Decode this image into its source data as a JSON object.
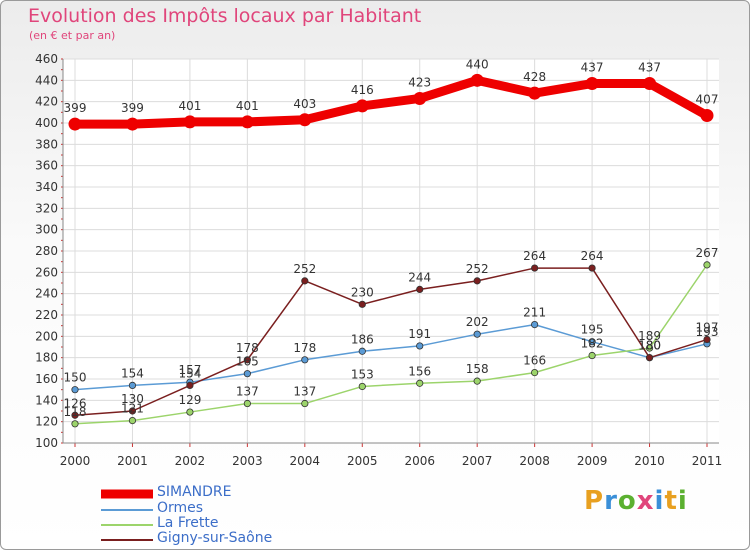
{
  "header": {
    "title": "Evolution des Impôts locaux par Habitant",
    "subtitle": "(en € et par an)"
  },
  "brand": {
    "text": "Proxiti",
    "colors": [
      "#e8a020",
      "#3a8fd8",
      "#5bb030",
      "#e0457b",
      "#3a8fd8",
      "#e8a020",
      "#5bb030"
    ]
  },
  "chart_data": {
    "type": "line",
    "categories": [
      "2000",
      "2001",
      "2002",
      "2003",
      "2004",
      "2005",
      "2006",
      "2007",
      "2008",
      "2009",
      "2010",
      "2011"
    ],
    "ylim": [
      100,
      460
    ],
    "yticks": [
      100,
      120,
      140,
      160,
      180,
      200,
      220,
      240,
      260,
      280,
      300,
      320,
      340,
      360,
      380,
      400,
      420,
      440,
      460
    ],
    "grid": true,
    "legend_position": "bottom-left",
    "series": [
      {
        "name": "SIMANDRE",
        "color": "#ee0000",
        "values": [
          399,
          399,
          401,
          401,
          403,
          416,
          423,
          440,
          428,
          437,
          437,
          407
        ],
        "labels": [
          "399",
          "399",
          "401",
          "401",
          "403",
          "416",
          "423",
          "440",
          "428",
          "437",
          "437",
          "407"
        ]
      },
      {
        "name": "Ormes",
        "color": "#5b9bd5",
        "values": [
          150,
          154,
          157,
          165,
          178,
          186,
          191,
          202,
          211,
          195,
          180,
          193
        ],
        "labels": [
          "150",
          "154",
          "157",
          "165",
          "178",
          "186",
          "191",
          "202",
          "211",
          "195",
          "180",
          "193"
        ]
      },
      {
        "name": "La Frette",
        "color": "#9cd46b",
        "values": [
          118,
          121,
          129,
          137,
          137,
          153,
          156,
          158,
          166,
          182,
          189,
          267
        ],
        "labels": [
          "118",
          "121",
          "129",
          "137",
          "137",
          "153",
          "156",
          "158",
          "166",
          "182",
          "189",
          "267"
        ]
      },
      {
        "name": "Gigny-sur-Saône",
        "color": "#7a1f1f",
        "values": [
          126,
          130,
          154,
          178,
          252,
          230,
          244,
          252,
          264,
          264,
          180,
          197
        ],
        "labels": [
          "126",
          "130",
          "154",
          "178",
          "252",
          "230",
          "244",
          "252",
          "264",
          "264",
          "180",
          "197"
        ]
      }
    ]
  }
}
